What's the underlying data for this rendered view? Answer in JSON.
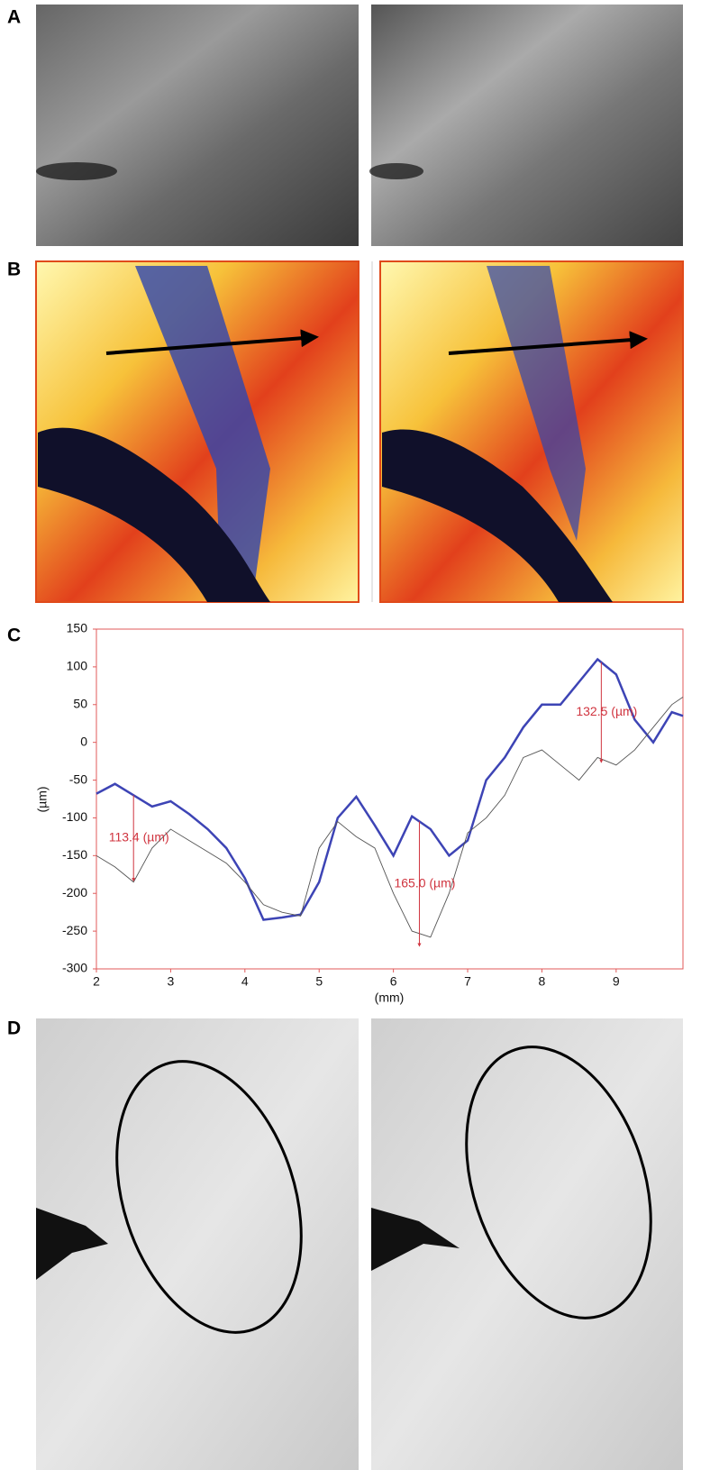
{
  "panels": {
    "a": "A",
    "b": "B",
    "c": "C",
    "d": "D"
  },
  "chart_data": {
    "type": "line",
    "xlabel": "(mm)",
    "ylabel": "(µm)",
    "x": [
      2,
      2.25,
      2.5,
      2.75,
      3,
      3.25,
      3.5,
      3.75,
      4,
      4.25,
      4.5,
      4.75,
      5,
      5.25,
      5.5,
      5.75,
      6,
      6.25,
      6.5,
      6.75,
      7,
      7.25,
      7.5,
      7.75,
      8,
      8.25,
      8.5,
      8.75,
      9,
      9.25,
      9.5,
      9.75,
      9.9
    ],
    "series": [
      {
        "color": "#3d44b5",
        "values": [
          -68,
          -55,
          -70,
          -85,
          -78,
          -95,
          -115,
          -140,
          -180,
          -235,
          -232,
          -228,
          -185,
          -100,
          -72,
          -110,
          -150,
          -98,
          -115,
          -150,
          -130,
          -50,
          -20,
          20,
          50,
          50,
          80,
          110,
          90,
          30,
          0,
          40,
          35
        ]
      },
      {
        "color": "#555555",
        "values": [
          -150,
          -165,
          -185,
          -140,
          -115,
          -130,
          -145,
          -160,
          -185,
          -215,
          -225,
          -230,
          -140,
          -105,
          -125,
          -140,
          -200,
          -250,
          -258,
          -200,
          -120,
          -100,
          -70,
          -20,
          -10,
          -30,
          -50,
          -20,
          -30,
          -10,
          20,
          50,
          60
        ]
      }
    ],
    "annotations": [
      {
        "x": 2.5,
        "value": 113.4,
        "label": "113.4   (µm)"
      },
      {
        "x": 6.35,
        "value": 165.0,
        "label": "165.0   (µm)"
      },
      {
        "x": 8.8,
        "value": 132.5,
        "label": "132.5   (µm)"
      }
    ],
    "xlim": [
      2,
      9.9
    ],
    "ylim": [
      -300,
      150
    ],
    "xticks": [
      2,
      3,
      4,
      5,
      6,
      7,
      8,
      9
    ],
    "yticks": [
      -300,
      -250,
      -200,
      -150,
      -100,
      -50,
      0,
      50,
      100,
      150
    ],
    "grid": false
  }
}
